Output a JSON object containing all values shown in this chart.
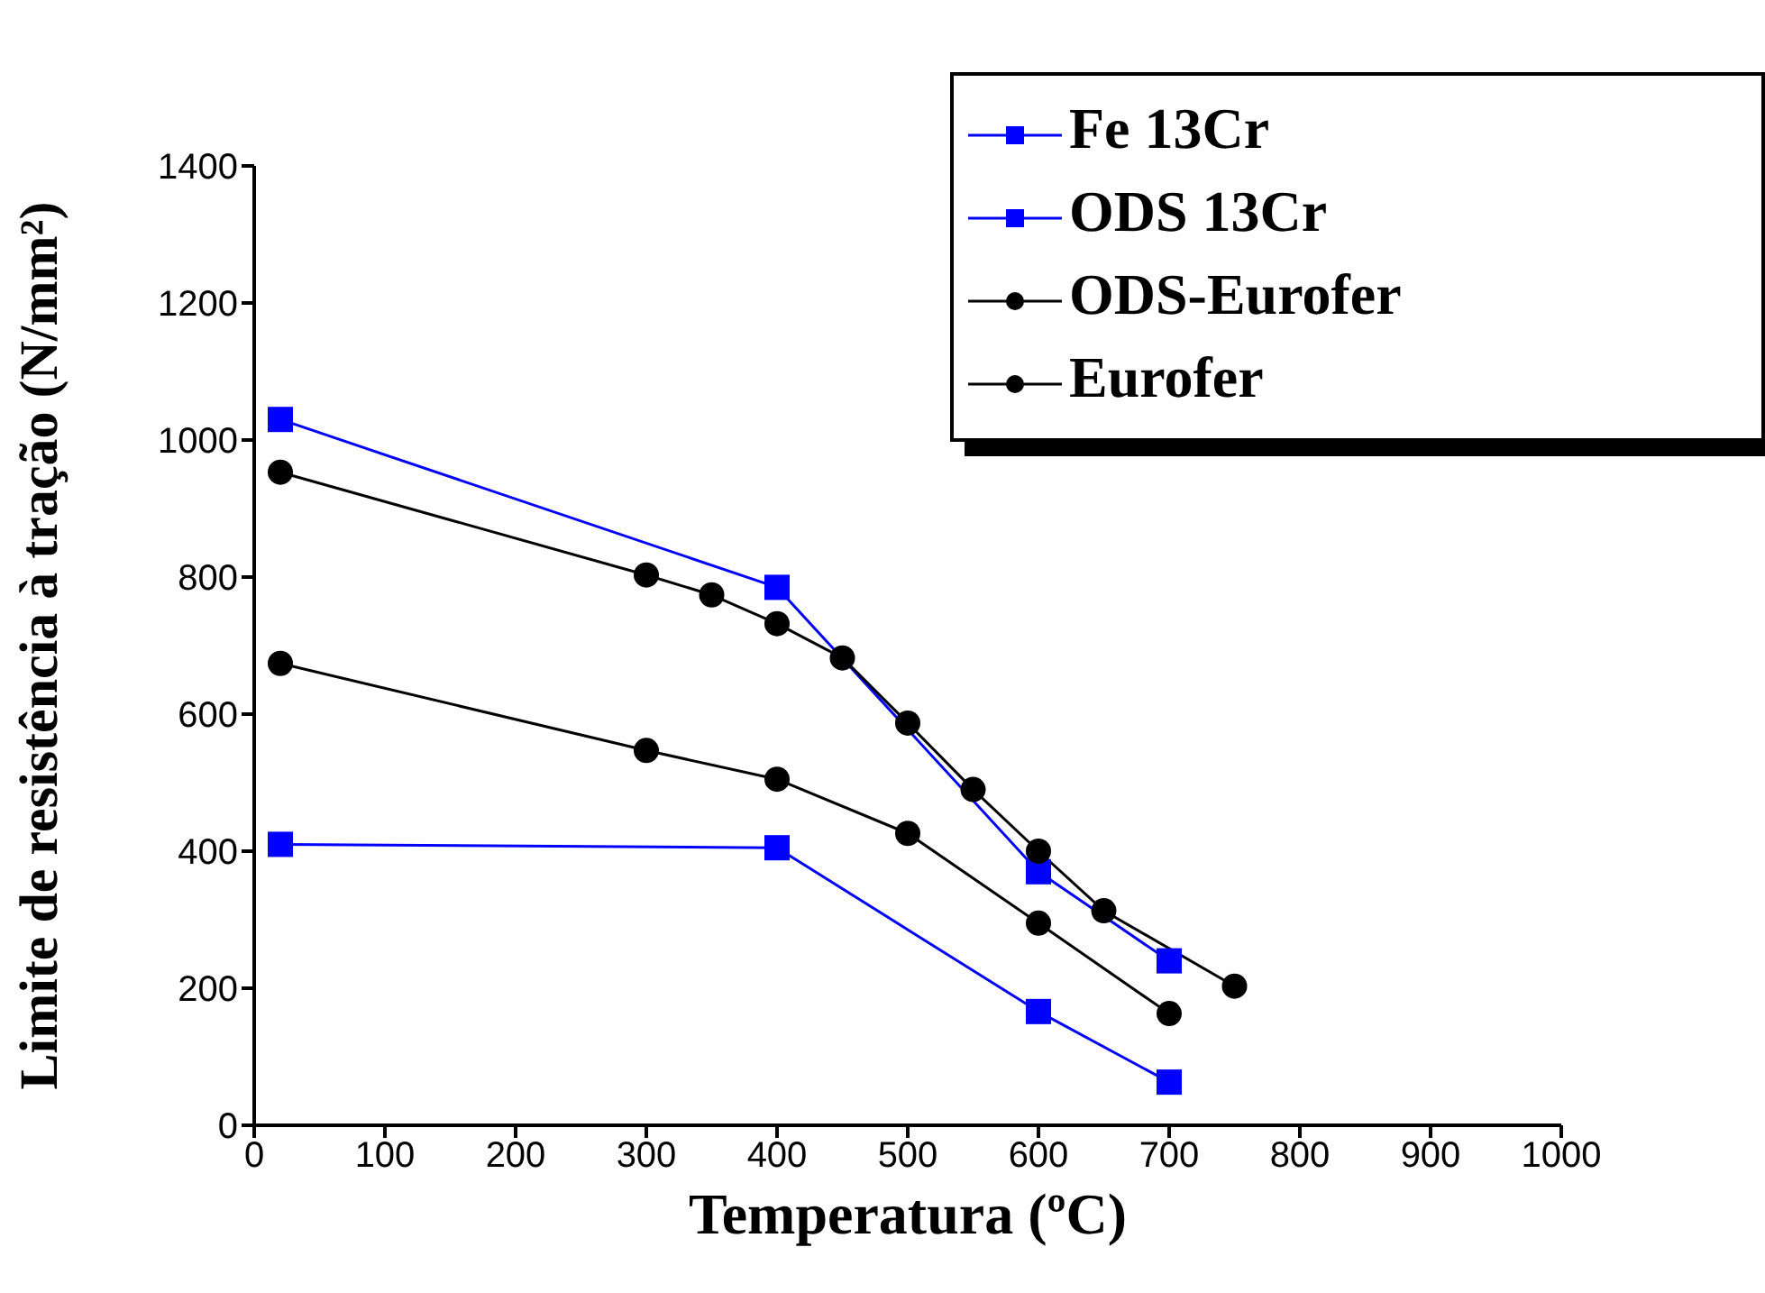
{
  "chart_data": {
    "type": "line",
    "xlabel": "Temperatura (ºC)",
    "ylabel": "Limite de resistência à tração (N/mm²)",
    "xlim": [
      0,
      1000
    ],
    "xticks": [
      0,
      100,
      200,
      300,
      400,
      500,
      600,
      700,
      800,
      900,
      1000
    ],
    "ylim": [
      0,
      1400
    ],
    "yticks": [
      0,
      200,
      400,
      600,
      800,
      1000,
      1200,
      1400
    ],
    "grid": false,
    "legend": "top right",
    "line_style": "solid",
    "series": [
      {
        "name": "Fe 13Cr",
        "color": "#0000ff",
        "marker": "square",
        "x": [
          20,
          400,
          600,
          700
        ],
        "values": [
          410,
          405,
          166,
          63
        ]
      },
      {
        "name": "ODS 13Cr",
        "color": "#0000ff",
        "marker": "square",
        "x": [
          20,
          400,
          600,
          700
        ],
        "values": [
          1030,
          785,
          370,
          240
        ]
      },
      {
        "name": "ODS-Eurofer",
        "color": "#000000",
        "marker": "circle",
        "x": [
          20,
          300,
          350,
          400,
          450,
          500,
          550,
          600,
          650,
          750
        ],
        "values": [
          953,
          803,
          774,
          732,
          682,
          587,
          490,
          400,
          313,
          203
        ]
      },
      {
        "name": "Eurofer",
        "color": "#000000",
        "marker": "circle",
        "x": [
          20,
          300,
          400,
          500,
          600,
          700
        ],
        "values": [
          674,
          547,
          505,
          426,
          295,
          163
        ]
      }
    ]
  }
}
